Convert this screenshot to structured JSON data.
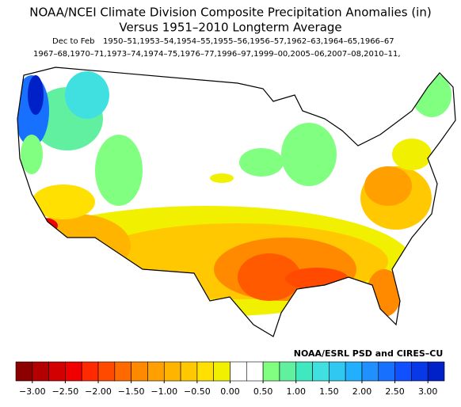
{
  "title": "NOAA/NCEI Climate Division Composite Precipitation Anomalies (in)",
  "subtitle": "Versus 1951–2010 Longterm Average",
  "season": "Dec to Feb",
  "years_line1": "1950–51,1953–54,1954–55,1955–56,1956–57,1962–63,1964–65,1966–67",
  "years_line2": "1967–68,1970–71,1973–74,1974–75,1976–77,1996–97,1999–00,2005–06,2007–08,2010–11,",
  "credit": "NOAA/ESRL PSD and CIRES–CU",
  "colorbar": {
    "lim": [
      -3.25,
      3.25
    ],
    "colors": [
      "#8c0000",
      "#b40000",
      "#d20000",
      "#f00000",
      "#ff2a00",
      "#ff4a00",
      "#ff6a00",
      "#ff8a00",
      "#ffa000",
      "#ffb400",
      "#ffc800",
      "#ffe000",
      "#f0f000",
      "#ffffff",
      "#ffffff",
      "#80ff80",
      "#60f0a0",
      "#40e8c0",
      "#40e0e0",
      "#30c8f0",
      "#20b0ff",
      "#2090ff",
      "#1870ff",
      "#1050ff",
      "#0838e8",
      "#0020c8"
    ],
    "ticks": [
      {
        "value": -3,
        "label": "−3.00"
      },
      {
        "value": -2.5,
        "label": "−2.50"
      },
      {
        "value": -2,
        "label": "−2.00"
      },
      {
        "value": -1.5,
        "label": "−1.50"
      },
      {
        "value": -1,
        "label": "−1.00"
      },
      {
        "value": -0.5,
        "label": "−0.50"
      },
      {
        "value": 0,
        "label": "0.00"
      },
      {
        "value": 0.5,
        "label": "0.50"
      },
      {
        "value": 1,
        "label": "1.00"
      },
      {
        "value": 1.5,
        "label": "1.50"
      },
      {
        "value": 2,
        "label": "2.00"
      },
      {
        "value": 2.5,
        "label": "2.50"
      },
      {
        "value": 3,
        "label": "3.00"
      }
    ]
  }
}
